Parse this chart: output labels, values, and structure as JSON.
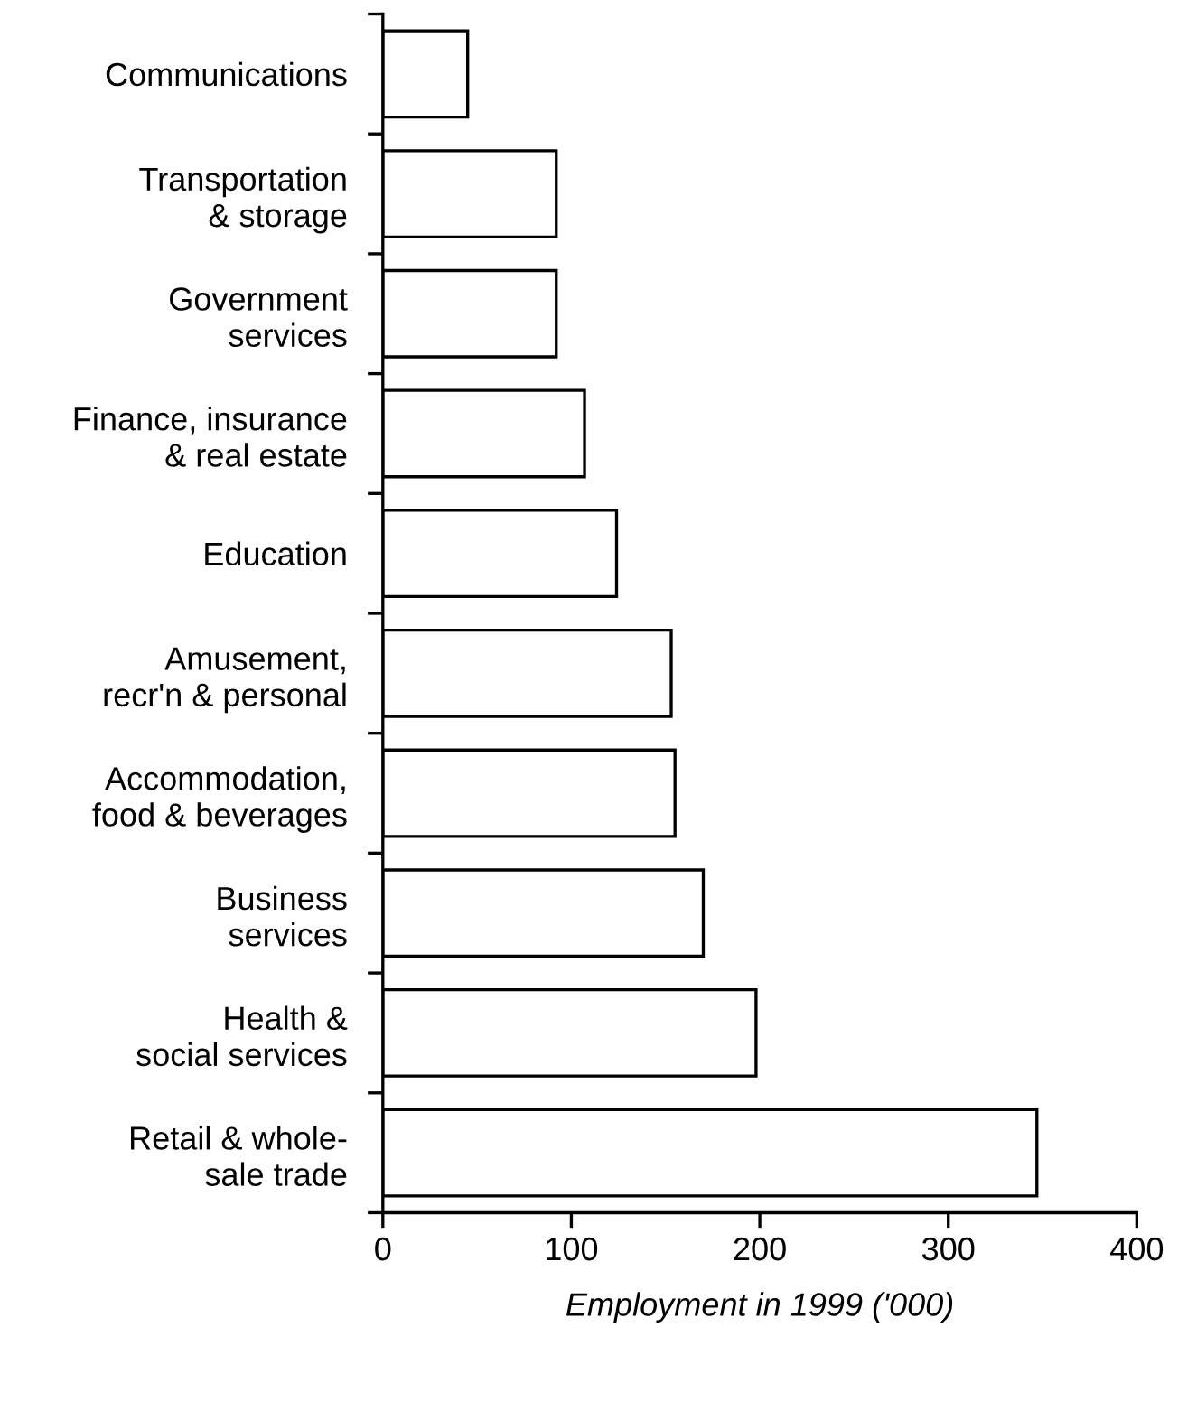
{
  "chart_data": {
    "type": "bar",
    "orientation": "horizontal",
    "xlabel": "Employment in 1999 ('000)",
    "categories": [
      "Communications",
      "Transportation\n& storage",
      "Government\nservices",
      "Finance, insurance\n& real estate",
      "Education",
      "Amusement,\nrecr'n & personal",
      "Accommodation,\nfood & beverages",
      "Business\nservices",
      "Health &\nsocial services",
      "Retail & whole-\nsale trade"
    ],
    "values": [
      45,
      92,
      92,
      107,
      124,
      153,
      155,
      170,
      198,
      347
    ],
    "color": "#ffffff",
    "xlim": [
      0,
      400
    ],
    "xticks": [
      0,
      100,
      200,
      300,
      400
    ],
    "grid": false
  }
}
